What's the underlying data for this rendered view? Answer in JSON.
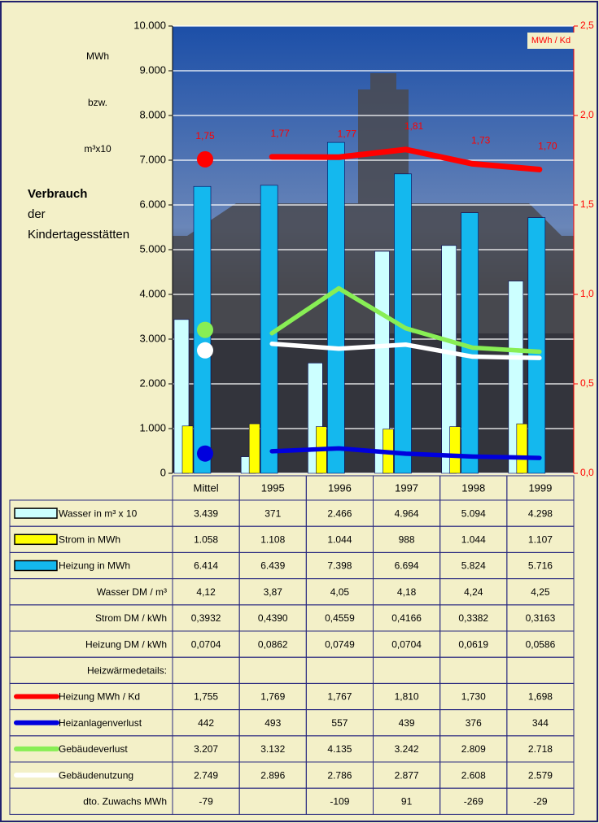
{
  "chart_data": {
    "type": "bar",
    "y_label": [
      "MWh",
      "bzw.",
      "m³x10"
    ],
    "side_title": [
      "Verbrauch",
      "der",
      "Kindertagesstätten"
    ],
    "y2_label": "MWh / Kd",
    "categories": [
      "Mittel",
      "1995",
      "1996",
      "1997",
      "1998",
      "1999"
    ],
    "ylim": [
      0,
      10000
    ],
    "yticks": [
      {
        "value": 0,
        "label": "0"
      },
      {
        "value": 1000,
        "label": "1.000"
      },
      {
        "value": 2000,
        "label": "2.000"
      },
      {
        "value": 3000,
        "label": "3.000"
      },
      {
        "value": 4000,
        "label": "4.000"
      },
      {
        "value": 5000,
        "label": "5.000"
      },
      {
        "value": 6000,
        "label": "6.000"
      },
      {
        "value": 7000,
        "label": "7.000"
      },
      {
        "value": 8000,
        "label": "8.000"
      },
      {
        "value": 9000,
        "label": "9.000"
      },
      {
        "value": 10000,
        "label": "10.000"
      }
    ],
    "y2lim": [
      0,
      2.5
    ],
    "y2ticks": [
      {
        "value": 0,
        "label": "0,0"
      },
      {
        "value": 0.5,
        "label": "0,5"
      },
      {
        "value": 1,
        "label": "1,0"
      },
      {
        "value": 1.5,
        "label": "1,5"
      },
      {
        "value": 2,
        "label": "2,0"
      },
      {
        "value": 2.5,
        "label": "2,5"
      }
    ],
    "grid": true,
    "series": [
      {
        "name": "Wasser in m³ x 10",
        "color": "#ccffff",
        "values": [
          3439,
          371,
          2466,
          4964,
          5094,
          4298
        ]
      },
      {
        "name": "Strom in MWh",
        "color": "#ffff00",
        "values": [
          1058,
          1108,
          1044,
          988,
          1044,
          1107
        ]
      },
      {
        "name": "Heizung in MWh",
        "color": "#14b8ee",
        "values": [
          6414,
          6439,
          7398,
          6694,
          5824,
          5716
        ]
      },
      {
        "name": "Heizung MWh / Kd",
        "type": "line",
        "axis": "y2",
        "color": "#ff0000",
        "values": [
          1.755,
          1.769,
          1.767,
          1.81,
          1.73,
          1.698
        ],
        "value_labels": [
          "1,75",
          "1,77",
          "1,77",
          "1,81",
          "1,73",
          "1,70"
        ]
      },
      {
        "name": "Heizanlagenverlust",
        "type": "line",
        "color": "#0000dd",
        "values": [
          442,
          493,
          557,
          439,
          376,
          344
        ]
      },
      {
        "name": "Gebäudeverlust",
        "type": "line",
        "color": "#88ee55",
        "values": [
          3207,
          3132,
          4135,
          3242,
          2809,
          2718
        ]
      },
      {
        "name": "Gebäudenutzung",
        "type": "line",
        "color": "#ffffff",
        "values": [
          2749,
          2896,
          2786,
          2877,
          2608,
          2579
        ]
      }
    ]
  },
  "table": {
    "rows": [
      {
        "cells": [
          "3.439",
          "371",
          "2.466",
          "4.964",
          "5.094",
          "4.298"
        ]
      },
      {
        "cells": [
          "1.058",
          "1.108",
          "1.044",
          "988",
          "1.044",
          "1.107"
        ]
      },
      {
        "cells": [
          "6.414",
          "6.439",
          "7.398",
          "6.694",
          "5.824",
          "5.716"
        ]
      },
      {
        "label": "Wasser DM / m³",
        "cells": [
          "4,12",
          "3,87",
          "4,05",
          "4,18",
          "4,24",
          "4,25"
        ]
      },
      {
        "label": "Strom DM / kWh",
        "cells": [
          "0,3932",
          "0,4390",
          "0,4559",
          "0,4166",
          "0,3382",
          "0,3163"
        ]
      },
      {
        "label": "Heizung DM / kWh",
        "cells": [
          "0,0704",
          "0,0862",
          "0,0749",
          "0,0704",
          "0,0619",
          "0,0586"
        ]
      },
      {
        "label": "Heizwärmedetails:"
      },
      {
        "cells": [
          "1,755",
          "1,769",
          "1,767",
          "1,810",
          "1,730",
          "1,698"
        ]
      },
      {
        "cells": [
          "442",
          "493",
          "557",
          "439",
          "376",
          "344"
        ]
      },
      {
        "cells": [
          "3.207",
          "3.132",
          "4.135",
          "3.242",
          "2.809",
          "2.718"
        ]
      },
      {
        "cells": [
          "2.749",
          "2.896",
          "2.786",
          "2.877",
          "2.608",
          "2.579"
        ]
      },
      {
        "label": "dto. Zuwachs MWh",
        "cells": [
          "-79",
          null,
          "-109",
          "91",
          "-269",
          "-29"
        ]
      }
    ]
  }
}
